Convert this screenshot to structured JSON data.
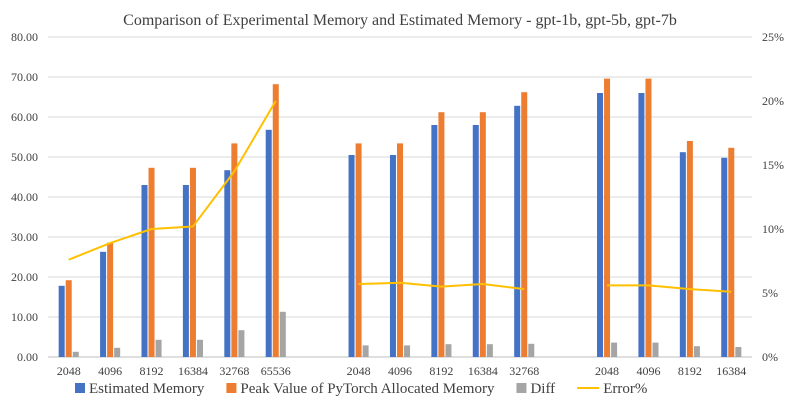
{
  "chart_data": {
    "type": "bar",
    "title": "Comparison of Experimental Memory and Estimated Memory - gpt-1b, gpt-5b, gpt-7b",
    "groups": [
      {
        "categories": [
          "2048",
          "4096",
          "8192",
          "16384",
          "32768",
          "65536"
        ]
      },
      {
        "categories": [
          "2048",
          "4096",
          "8192",
          "16384",
          "32768"
        ]
      },
      {
        "categories": [
          "2048",
          "4096",
          "8192",
          "16384"
        ]
      }
    ],
    "series": [
      {
        "name": "Estimated Memory",
        "type": "bar",
        "axis": "left",
        "color": "#4472C4",
        "values": [
          [
            17.8,
            26.3,
            43.0,
            43.0,
            46.7,
            56.8
          ],
          [
            50.5,
            50.5,
            58.0,
            58.0,
            62.8
          ],
          [
            66.0,
            66.0,
            51.2,
            49.8
          ]
        ]
      },
      {
        "name": "Peak Value of PyTorch Allocated Memory",
        "type": "bar",
        "axis": "left",
        "color": "#ED7D31",
        "values": [
          [
            19.2,
            28.6,
            47.3,
            47.3,
            53.4,
            68.2
          ],
          [
            53.4,
            53.4,
            61.2,
            61.2,
            66.2
          ],
          [
            69.6,
            69.6,
            54.0,
            52.3
          ]
        ]
      },
      {
        "name": "Diff",
        "type": "bar",
        "axis": "left",
        "color": "#A5A5A5",
        "values": [
          [
            1.3,
            2.3,
            4.3,
            4.3,
            6.7,
            11.3
          ],
          [
            2.9,
            2.9,
            3.2,
            3.2,
            3.3
          ],
          [
            3.6,
            3.6,
            2.7,
            2.5
          ]
        ]
      },
      {
        "name": "Error%",
        "type": "line",
        "axis": "right",
        "color": "#FFC000",
        "values": [
          [
            7.6,
            8.9,
            10.0,
            10.2,
            14.5,
            20.0
          ],
          [
            5.7,
            5.8,
            5.5,
            5.7,
            5.3
          ],
          [
            5.6,
            5.6,
            5.3,
            5.1
          ]
        ]
      }
    ],
    "y_left": {
      "min": 0,
      "max": 80,
      "step": 10,
      "tick_labels": [
        "0.00",
        "10.00",
        "20.00",
        "30.00",
        "40.00",
        "50.00",
        "60.00",
        "70.00",
        "80.00"
      ]
    },
    "y_right": {
      "min": 0,
      "max": 25,
      "step": 5,
      "tick_labels": [
        "0%",
        "5%",
        "10%",
        "15%",
        "20%",
        "25%"
      ]
    },
    "grid": "horizontal",
    "legend_position": "bottom"
  }
}
